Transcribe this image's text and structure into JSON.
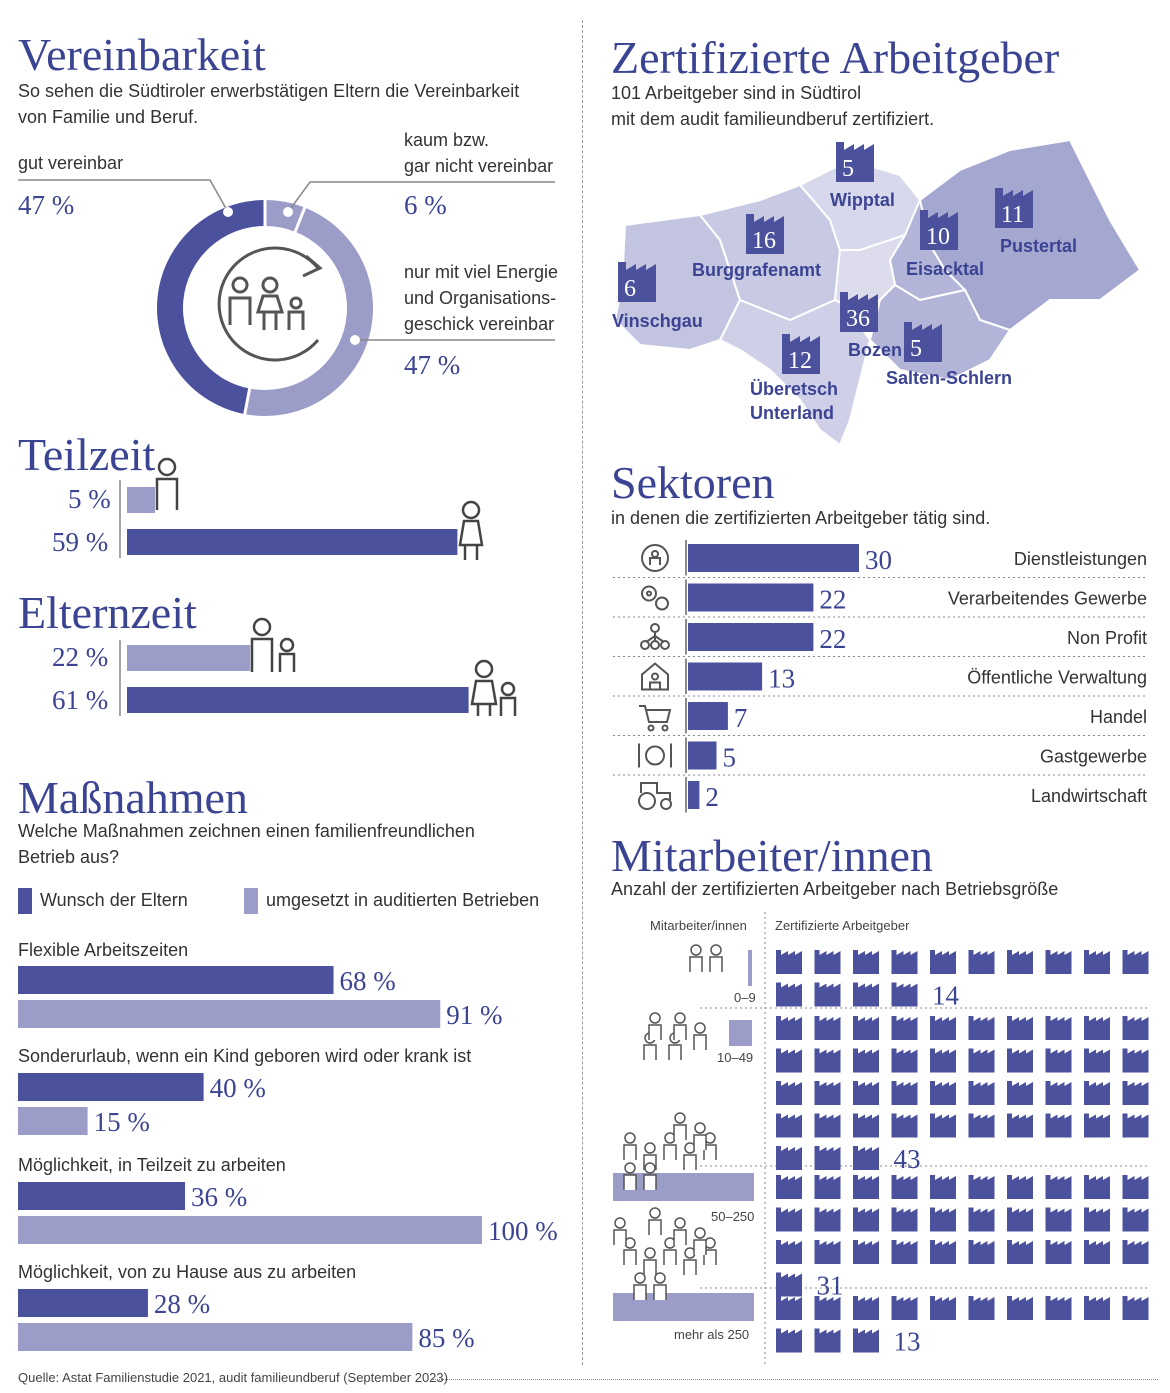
{
  "colors": {
    "dark": "#4b519c",
    "light": "#9c9cc9",
    "title": "#3b4493",
    "map_dark": "#9fa3cb",
    "map_mid": "#b7b9da",
    "map_light": "#d2d3e8"
  },
  "vereinbarkeit": {
    "title": "Vereinbarkeit",
    "subtitle_line1": "So sehen die Südtiroler erwerbstätigen Eltern die Vereinbarkeit",
    "subtitle_line2": "von Familie und Beruf.",
    "label_good": "gut vereinbar",
    "pct_good": "47 %",
    "label_bad_line1": "kaum bzw.",
    "label_bad_line2": "gar nicht vereinbar",
    "pct_bad": "6 %",
    "label_effort_line1": "nur mit viel Energie",
    "label_effort_line2": "und Organisations-",
    "label_effort_line3": "geschick vereinbar",
    "pct_effort": "47 %",
    "icon": "family-cycle-icon"
  },
  "teilzeit": {
    "title": "Teilzeit",
    "men_label": "5 %",
    "women_label": "59 %",
    "icon_men": "man-icon",
    "icon_women": "woman-icon"
  },
  "elternzeit": {
    "title": "Elternzeit",
    "men_label": "22 %",
    "women_label": "61 %",
    "icon_men": "father-child-icon",
    "icon_women": "mother-child-icon"
  },
  "massnahmen": {
    "title": "Maßnahmen",
    "subtitle_line1": "Welche Maßnahmen zeichnen einen familienfreundlichen",
    "subtitle_line2": "Betrieb aus?",
    "legend_wish": "Wunsch der Eltern",
    "legend_done": "umgesetzt in auditierten Betrieben",
    "items": [
      {
        "label": "Flexible Arbeitszeiten",
        "wish_label": "68 %",
        "done_label": "91 %"
      },
      {
        "label": "Sonderurlaub, wenn ein Kind geboren wird oder krank ist",
        "wish_label": "40 %",
        "done_label": "15 %"
      },
      {
        "label": "Möglichkeit, in Teilzeit zu arbeiten",
        "wish_label": "36 %",
        "done_label": "100 %"
      },
      {
        "label": "Möglichkeit, von zu Hause aus zu arbeiten",
        "wish_label": "28 %",
        "done_label": "85 %"
      }
    ]
  },
  "zertifizierte": {
    "title": "Zertifizierte Arbeitgeber",
    "subtitle_line1": "101 Arbeitgeber sind in Südtirol",
    "subtitle_line2": "mit dem audit familieundberuf zertifiziert.",
    "regions": [
      {
        "name": "Wipptal",
        "count": "5"
      },
      {
        "name": "Pustertal",
        "count": "11"
      },
      {
        "name": "Eisacktal",
        "count": "10"
      },
      {
        "name": "Burggrafenamt",
        "count": "16"
      },
      {
        "name": "Vinschgau",
        "count": "6"
      },
      {
        "name": "Bozen",
        "count": "36"
      },
      {
        "name": "Salten-Schlern",
        "count": "5"
      },
      {
        "name": "Überetsch",
        "count": "12"
      },
      {
        "name": "Unterland",
        "count": ""
      }
    ]
  },
  "sektoren": {
    "title": "Sektoren",
    "subtitle": "in denen die zertifizierten Arbeitgeber tätig sind.",
    "items": [
      {
        "label": "Dienstleistungen",
        "value_label": "30",
        "icon": "person-cycle-icon"
      },
      {
        "label": "Verarbeitendes Gewerbe",
        "value_label": "22",
        "icon": "gears-icon"
      },
      {
        "label": "Non Profit",
        "value_label": "22",
        "icon": "network-icon"
      },
      {
        "label": "Öffentliche Verwaltung",
        "value_label": "13",
        "icon": "public-building-icon"
      },
      {
        "label": "Handel",
        "value_label": "7",
        "icon": "shopping-cart-icon"
      },
      {
        "label": "Gastgewerbe",
        "value_label": "5",
        "icon": "cutlery-icon"
      },
      {
        "label": "Landwirtschaft",
        "value_label": "2",
        "icon": "tractor-icon"
      }
    ]
  },
  "mitarbeiter": {
    "title": "Mitarbeiter/innen",
    "subtitle": "Anzahl der zertifizierten Arbeitgeber nach Betriebsgröße",
    "col_left": "Mitarbeiter/innen",
    "col_right": "Zertifizierte Arbeitgeber",
    "groups": [
      {
        "size_label": "0–9",
        "count_label": "14"
      },
      {
        "size_label": "10–49",
        "count_label": "43"
      },
      {
        "size_label": "50–250",
        "count_label": "31"
      },
      {
        "size_label": "mehr als 250",
        "count_label": "13"
      }
    ]
  },
  "source": "Quelle: Astat Familienstudie 2021, audit familieundberuf (September 2023)",
  "chart_data": [
    {
      "type": "pie",
      "title": "Vereinbarkeit",
      "categories": [
        "gut vereinbar",
        "kaum bzw. gar nicht vereinbar",
        "nur mit viel Energie und Organisationsgeschick vereinbar"
      ],
      "values": [
        47,
        6,
        47
      ]
    },
    {
      "type": "bar",
      "title": "Teilzeit",
      "categories": [
        "5 %",
        "59 %"
      ],
      "values": [
        5,
        59
      ]
    },
    {
      "type": "bar",
      "title": "Elternzeit",
      "categories": [
        "22 %",
        "61 %"
      ],
      "values": [
        22,
        61
      ]
    },
    {
      "type": "bar",
      "title": "Maßnahmen",
      "categories": [
        "Flexible Arbeitszeiten",
        "Sonderurlaub, wenn ein Kind geboren wird oder krank ist",
        "Möglichkeit, in Teilzeit zu arbeiten",
        "Möglichkeit, von zu Hause aus zu arbeiten"
      ],
      "series": [
        {
          "name": "Wunsch der Eltern",
          "values": [
            68,
            40,
            36,
            28
          ]
        },
        {
          "name": "umgesetzt in auditierten Betrieben",
          "values": [
            91,
            15,
            100,
            85
          ]
        }
      ]
    },
    {
      "type": "bar",
      "title": "Sektoren",
      "categories": [
        "Dienstleistungen",
        "Verarbeitendes Gewerbe",
        "Non Profit",
        "Öffentliche Verwaltung",
        "Handel",
        "Gastgewerbe",
        "Landwirtschaft"
      ],
      "values": [
        30,
        22,
        22,
        13,
        7,
        5,
        2
      ]
    },
    {
      "type": "bar",
      "title": "Mitarbeiter/innen",
      "categories": [
        "0–9",
        "10–49",
        "50–250",
        "mehr als 250"
      ],
      "values": [
        14,
        43,
        31,
        13
      ]
    }
  ]
}
